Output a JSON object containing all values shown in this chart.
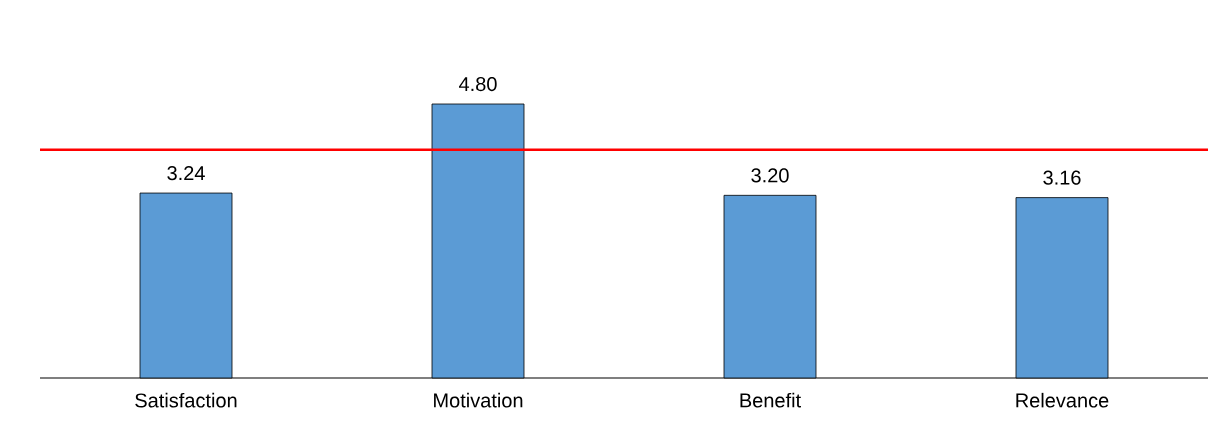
{
  "chart_data": {
    "type": "bar",
    "categories": [
      "Satisfaction",
      "Motivation",
      "Benefit",
      "Relevance"
    ],
    "values": [
      3.24,
      4.8,
      3.2,
      3.16
    ],
    "value_labels": [
      "3.24",
      "4.80",
      "3.20",
      "3.16"
    ],
    "color": "#5b9bd5",
    "ref_lines": [
      {
        "axis": "y",
        "value": 4,
        "color": "#ff0000"
      }
    ]
  }
}
